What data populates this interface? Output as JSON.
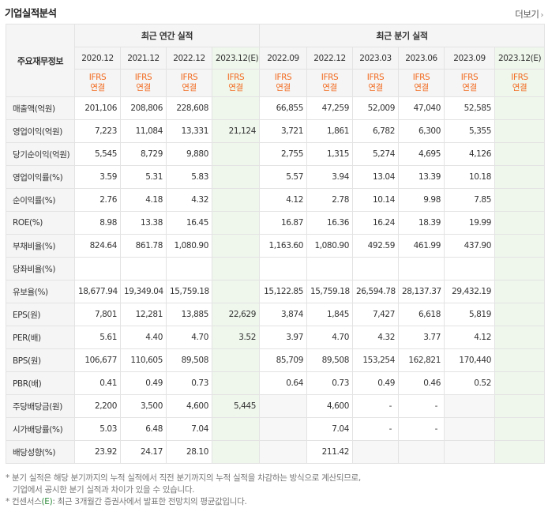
{
  "header": {
    "title": "기업실적분석",
    "more_label": "더보기"
  },
  "table": {
    "row_header": "주요재무정보",
    "groups": {
      "annual": "최근 연간 실적",
      "quarterly": "최근 분기 실적"
    },
    "columns": [
      {
        "date": "2020.12",
        "basis": [
          "IFRS",
          "연결"
        ],
        "est": false
      },
      {
        "date": "2021.12",
        "basis": [
          "IFRS",
          "연결"
        ],
        "est": false
      },
      {
        "date": "2022.12",
        "basis": [
          "IFRS",
          "연결"
        ],
        "est": false
      },
      {
        "date": "2023.12(E)",
        "basis": [
          "IFRS",
          "연결"
        ],
        "est": true
      },
      {
        "date": "2022.09",
        "basis": [
          "IFRS",
          "연결"
        ],
        "est": false
      },
      {
        "date": "2022.12",
        "basis": [
          "IFRS",
          "연결"
        ],
        "est": false
      },
      {
        "date": "2023.03",
        "basis": [
          "IFRS",
          "연결"
        ],
        "est": false
      },
      {
        "date": "2023.06",
        "basis": [
          "IFRS",
          "연결"
        ],
        "est": false
      },
      {
        "date": "2023.09",
        "basis": [
          "IFRS",
          "연결"
        ],
        "est": false
      },
      {
        "date": "2023.12(E)",
        "basis": [
          "IFRS",
          "연결"
        ],
        "est": true
      }
    ],
    "rows": [
      {
        "label": "매출액(억원)",
        "sep": false,
        "values": [
          "201,106",
          "208,806",
          "228,608",
          "",
          "66,855",
          "47,259",
          "52,009",
          "47,040",
          "52,585",
          ""
        ]
      },
      {
        "label": "영업이익(억원)",
        "sep": false,
        "values": [
          "7,223",
          "11,084",
          "13,331",
          "21,124",
          "3,721",
          "1,861",
          "6,782",
          "6,300",
          "5,355",
          ""
        ]
      },
      {
        "label": "당기순이익(억원)",
        "sep": false,
        "values": [
          "5,545",
          "8,729",
          "9,880",
          "",
          "2,755",
          "1,315",
          "5,274",
          "4,695",
          "4,126",
          ""
        ]
      },
      {
        "label": "영업이익률(%)",
        "sep": true,
        "values": [
          "3.59",
          "5.31",
          "5.83",
          "",
          "5.57",
          "3.94",
          "13.04",
          "13.39",
          "10.18",
          ""
        ]
      },
      {
        "label": "순이익률(%)",
        "sep": false,
        "values": [
          "2.76",
          "4.18",
          "4.32",
          "",
          "4.12",
          "2.78",
          "10.14",
          "9.98",
          "7.85",
          ""
        ]
      },
      {
        "label": "ROE(%)",
        "sep": false,
        "values": [
          "8.98",
          "13.38",
          "16.45",
          "",
          "16.87",
          "16.36",
          "16.24",
          "18.39",
          "19.99",
          ""
        ]
      },
      {
        "label": "부채비율(%)",
        "sep": true,
        "values": [
          "824.64",
          "861.78",
          "1,080.90",
          "",
          "1,163.60",
          "1,080.90",
          "492.59",
          "461.99",
          "437.90",
          ""
        ]
      },
      {
        "label": "당좌비율(%)",
        "sep": false,
        "values": [
          "",
          "",
          "",
          "",
          "",
          "",
          "",
          "",
          "",
          ""
        ]
      },
      {
        "label": "유보율(%)",
        "sep": false,
        "values": [
          "18,677.94",
          "19,349.04",
          "15,759.18",
          "",
          "15,122.85",
          "15,759.18",
          "26,594.78",
          "28,137.37",
          "29,432.19",
          ""
        ]
      },
      {
        "label": "EPS(원)",
        "sep": true,
        "values": [
          "7,801",
          "12,281",
          "13,885",
          "22,629",
          "3,874",
          "1,845",
          "7,427",
          "6,618",
          "5,819",
          ""
        ]
      },
      {
        "label": "PER(배)",
        "sep": false,
        "values": [
          "5.61",
          "4.40",
          "4.70",
          "3.52",
          "3.97",
          "4.70",
          "4.32",
          "3.77",
          "4.12",
          ""
        ]
      },
      {
        "label": "BPS(원)",
        "sep": false,
        "values": [
          "106,677",
          "110,605",
          "89,508",
          "",
          "85,709",
          "89,508",
          "153,254",
          "162,821",
          "170,440",
          ""
        ]
      },
      {
        "label": "PBR(배)",
        "sep": false,
        "values": [
          "0.41",
          "0.49",
          "0.73",
          "",
          "0.64",
          "0.73",
          "0.49",
          "0.46",
          "0.52",
          ""
        ]
      },
      {
        "label": "주당배당금(원)",
        "sep": true,
        "values": [
          "2,200",
          "3,500",
          "4,600",
          "5,445",
          "",
          "4,600",
          "-",
          "-",
          "",
          ""
        ],
        "na": [
          false,
          false,
          false,
          false,
          true,
          false,
          false,
          false,
          true,
          false
        ]
      },
      {
        "label": "시가배당률(%)",
        "sep": false,
        "values": [
          "5.03",
          "6.48",
          "7.04",
          "",
          "",
          "7.04",
          "-",
          "-",
          "",
          ""
        ],
        "na": [
          false,
          false,
          false,
          false,
          true,
          false,
          false,
          false,
          true,
          false
        ]
      },
      {
        "label": "배당성향(%)",
        "sep": false,
        "values": [
          "23.92",
          "24.17",
          "28.10",
          "",
          "",
          "211.42",
          "",
          "",
          "",
          ""
        ],
        "na": [
          false,
          false,
          false,
          false,
          true,
          false,
          true,
          true,
          true,
          false
        ]
      }
    ]
  },
  "notes": {
    "line1": "* 분기 실적은 해당 분기까지의 누적 실적에서 직전 분기까지의 누적 실적을 차감하는 방식으로 계산되므로,",
    "line2": "기업에서 공시한 분기 실적과 차이가 있을 수 있습니다.",
    "line3_prefix": "* 컨센서스",
    "line3_em": "(E)",
    "line3_suffix": ": 최근 3개월간 증권사에서 발표한 전망치의 평균값입니다."
  }
}
